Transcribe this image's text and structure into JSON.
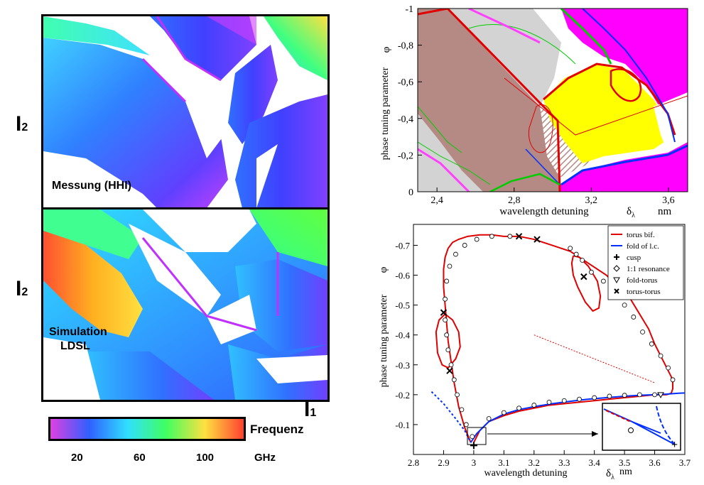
{
  "left_panel": {
    "top_map_label": "Messung (HHI)",
    "bottom_map_label_line1": "Simulation",
    "bottom_map_label_line2": "LDSL",
    "y_axis_symbol": "I",
    "y_axis_subscript": "2",
    "x_axis_symbol": "I",
    "x_axis_subscript": "1",
    "colorbar": {
      "title": "Frequenz",
      "unit": "GHz",
      "ticks": [
        "20",
        "60",
        "100"
      ],
      "colors": [
        "#e040e0",
        "#3060ff",
        "#30e0ff",
        "#40ff60",
        "#ffe040",
        "#ff4030"
      ]
    }
  },
  "chart_data": [
    {
      "type": "area",
      "ylabel": "phase tuning parameter",
      "yvar": "φ",
      "xlabel": "wavelength detuning",
      "xvar": "δ",
      "xvar_sub": "λ",
      "xunit": "nm",
      "xlim": [
        2.3,
        3.7
      ],
      "ylim": [
        0,
        -1
      ],
      "xticks": [
        "2,4",
        "2,8",
        "3,2",
        "3,6"
      ],
      "yticks": [
        "-1",
        "-0,8",
        "-0,6",
        "-0,4",
        "-0,2",
        "0"
      ],
      "region_colors": {
        "brown": "#b58a84",
        "gray": "#d3d3d3",
        "yellow": "#ffff00",
        "magenta": "#ff00ff",
        "red_curve": "#e00000",
        "blue_curve": "#0030ff",
        "green_curve": "#00cc00"
      }
    },
    {
      "type": "line",
      "ylabel": "phase tuning parameter",
      "yvar": "φ",
      "xlabel": "wavelength detuning",
      "xvar": "δ",
      "xvar_sub": "λ",
      "xunit": "nm",
      "xlim": [
        2.8,
        3.7
      ],
      "ylim": [
        0,
        -0.77
      ],
      "xticks": [
        "2.8",
        "2.9",
        "3",
        "3.1",
        "3.2",
        "3.3",
        "3.4",
        "3.5",
        "3.6",
        "3.7"
      ],
      "yticks": [
        "-0.7",
        "-0.6",
        "-0.5",
        "-0.4",
        "-0.3",
        "-0.2",
        "-0.1"
      ],
      "legend": [
        {
          "label": "torus bif.",
          "kind": "line",
          "color": "#e00000"
        },
        {
          "label": "fold of l.c.",
          "kind": "line",
          "color": "#0030ff"
        },
        {
          "label": "cusp",
          "kind": "plus",
          "color": "#000000"
        },
        {
          "label": "1:1 resonance",
          "kind": "diamond",
          "color": "#000000"
        },
        {
          "label": "fold-torus",
          "kind": "triangle",
          "color": "#000000"
        },
        {
          "label": "torus-torus",
          "kind": "x",
          "color": "#000000"
        }
      ],
      "legend_position": "top-right",
      "series": [
        {
          "kind": "torus",
          "color": "#e00000",
          "x": [
            2.99,
            2.97,
            2.95,
            2.935,
            2.925,
            2.915,
            2.91,
            2.905,
            2.9,
            2.9,
            2.905,
            2.915,
            2.93,
            2.95,
            2.98,
            3.02,
            3.06,
            3.1,
            3.15,
            3.2,
            3.26,
            3.32,
            3.38,
            3.44,
            3.48,
            3.52,
            3.55,
            3.58,
            3.6,
            3.62,
            3.64,
            3.655,
            3.66,
            3.66,
            3.655,
            3.64
          ],
          "y": [
            -0.04,
            -0.09,
            -0.16,
            -0.24,
            -0.31,
            -0.38,
            -0.44,
            -0.5,
            -0.56,
            -0.62,
            -0.66,
            -0.69,
            -0.71,
            -0.72,
            -0.73,
            -0.735,
            -0.735,
            -0.73,
            -0.73,
            -0.72,
            -0.7,
            -0.68,
            -0.64,
            -0.6,
            -0.56,
            -0.52,
            -0.47,
            -0.42,
            -0.37,
            -0.33,
            -0.29,
            -0.26,
            -0.24,
            -0.22,
            -0.205,
            -0.2
          ]
        },
        {
          "kind": "torus",
          "color": "#e00000",
          "x": [
            3.64,
            3.6,
            3.55,
            3.5,
            3.45,
            3.4,
            3.35,
            3.3,
            3.25,
            3.2,
            3.15,
            3.1,
            3.05,
            3.02,
            3.0
          ],
          "y": [
            -0.2,
            -0.2,
            -0.195,
            -0.19,
            -0.185,
            -0.18,
            -0.175,
            -0.17,
            -0.165,
            -0.155,
            -0.145,
            -0.13,
            -0.11,
            -0.08,
            -0.04
          ]
        },
        {
          "kind": "torus",
          "color": "#e00000",
          "x": [
            2.905,
            2.93,
            2.95,
            2.955,
            2.94,
            2.915,
            2.895,
            2.88,
            2.875,
            2.885,
            2.905
          ],
          "y": [
            -0.47,
            -0.45,
            -0.41,
            -0.36,
            -0.32,
            -0.29,
            -0.3,
            -0.34,
            -0.41,
            -0.45,
            -0.47
          ]
        },
        {
          "kind": "torus",
          "color": "#e00000",
          "x": [
            3.33,
            3.35,
            3.38,
            3.41,
            3.42,
            3.415,
            3.395,
            3.37,
            3.345,
            3.33,
            3.325,
            3.33
          ],
          "y": [
            -0.665,
            -0.66,
            -0.63,
            -0.58,
            -0.53,
            -0.49,
            -0.48,
            -0.51,
            -0.56,
            -0.6,
            -0.64,
            -0.665
          ]
        },
        {
          "kind": "fold",
          "color": "#0030ff",
          "x": [
            2.99,
            3.01,
            3.05,
            3.1,
            3.15,
            3.2,
            3.26,
            3.32,
            3.38,
            3.44,
            3.5,
            3.55,
            3.6,
            3.64,
            3.68,
            3.7
          ],
          "y": [
            -0.04,
            -0.07,
            -0.11,
            -0.135,
            -0.15,
            -0.16,
            -0.17,
            -0.178,
            -0.185,
            -0.19,
            -0.195,
            -0.198,
            -0.2,
            -0.202,
            -0.205,
            -0.206
          ]
        },
        {
          "kind": "fold",
          "color": "#0030ff",
          "x": [
            2.86,
            2.9,
            2.94,
            2.97,
            2.99
          ],
          "y": [
            -0.21,
            -0.17,
            -0.12,
            -0.08,
            -0.04
          ]
        }
      ],
      "markers": {
        "cusp": {
          "x": [
            3.0
          ],
          "y": [
            -0.03
          ]
        },
        "torus_torus": {
          "x": [
            2.9,
            2.92,
            3.15,
            3.21,
            3.365
          ],
          "y": [
            -0.475,
            -0.28,
            -0.73,
            -0.72,
            -0.595
          ]
        },
        "fold_torus": {
          "x": [
            3.62
          ],
          "y": [
            -0.2
          ]
        },
        "resonance_1_1": {
          "x": [
            2.995,
            2.975,
            2.96,
            2.945,
            2.935,
            2.925,
            2.915,
            2.91,
            2.905,
            2.905,
            2.91,
            2.92,
            2.94,
            2.97,
            3.01,
            3.06,
            3.12,
            3.32,
            3.34,
            3.36,
            3.39,
            3.43,
            3.47,
            3.5,
            3.53,
            3.56,
            3.59,
            3.62,
            3.645,
            3.66,
            3.05,
            3.1,
            3.15,
            3.2,
            3.25,
            3.3,
            3.35,
            3.4,
            3.45,
            3.5,
            3.55,
            3.6,
            3.56
          ],
          "y": [
            -0.06,
            -0.1,
            -0.15,
            -0.2,
            -0.25,
            -0.3,
            -0.35,
            -0.4,
            -0.45,
            -0.52,
            -0.58,
            -0.63,
            -0.67,
            -0.7,
            -0.72,
            -0.73,
            -0.73,
            -0.69,
            -0.67,
            -0.65,
            -0.61,
            -0.58,
            -0.54,
            -0.5,
            -0.46,
            -0.41,
            -0.37,
            -0.33,
            -0.29,
            -0.25,
            -0.12,
            -0.14,
            -0.155,
            -0.165,
            -0.175,
            -0.18,
            -0.185,
            -0.19,
            -0.195,
            -0.198,
            -0.2,
            -0.2,
            -0.085
          ]
        }
      },
      "inset_note": "zoom of cusp region"
    }
  ]
}
